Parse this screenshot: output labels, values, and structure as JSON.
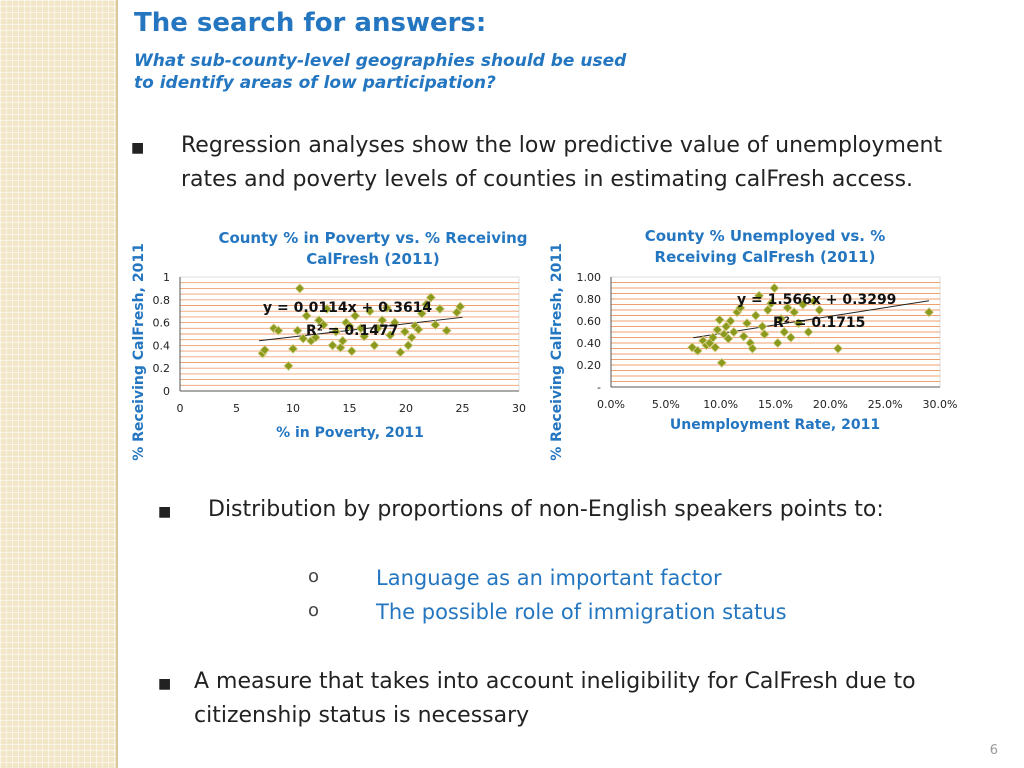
{
  "slide": {
    "title": "The search for answers:",
    "subtitle_line1": "What sub-county-level geographies should be used",
    "subtitle_line2": "to identify areas of low participation?",
    "bullet1": "Regression analyses show the low predictive value of unemployment rates and poverty levels of counties in estimating calFresh access.",
    "bullet2": "Distribution by proportions of non-English speakers points to:",
    "sub_bullets": [
      "Language as an important factor",
      "The possible role of immigration status"
    ],
    "bullet3": "A measure that takes into account ineligibility for CalFresh due to citizenship status is necessary",
    "bullet_mark": "■",
    "sub_mark": "o",
    "page_number": "6",
    "colors": {
      "accent": "#2476c0",
      "marker": "#8a9a1e",
      "grid": "#f0a070"
    }
  },
  "chart_data": [
    {
      "type": "scatter",
      "title_line1": "County % in Poverty vs. % Receiving",
      "title_line2": "CalFresh (2011)",
      "xlabel": "% in Poverty, 2011",
      "ylabel": "% Receiving CalFresh, 2011",
      "xlim": [
        0,
        30
      ],
      "ylim": [
        0,
        1
      ],
      "xticks": [
        "0",
        "5",
        "10",
        "15",
        "20",
        "25",
        "30"
      ],
      "yticks": [
        "0",
        "0.2",
        "0.4",
        "0.6",
        "0.8",
        "1"
      ],
      "equation": "y = 0.0114x + 0.3614",
      "r2": "R² = 0.1477",
      "trendline": {
        "slope": 0.0114,
        "intercept": 0.3614,
        "x_from": 7,
        "x_to": 25
      },
      "grid": true,
      "points": [
        [
          7.3,
          0.33
        ],
        [
          7.5,
          0.36
        ],
        [
          8.3,
          0.55
        ],
        [
          8.7,
          0.53
        ],
        [
          9.6,
          0.22
        ],
        [
          10.0,
          0.37
        ],
        [
          10.4,
          0.53
        ],
        [
          10.6,
          0.9
        ],
        [
          10.9,
          0.46
        ],
        [
          11.2,
          0.66
        ],
        [
          11.6,
          0.44
        ],
        [
          12.0,
          0.47
        ],
        [
          12.3,
          0.62
        ],
        [
          12.7,
          0.58
        ],
        [
          13.0,
          0.72
        ],
        [
          13.5,
          0.4
        ],
        [
          13.8,
          0.52
        ],
        [
          14.2,
          0.38
        ],
        [
          14.4,
          0.44
        ],
        [
          14.7,
          0.6
        ],
        [
          15.0,
          0.57
        ],
        [
          15.2,
          0.35
        ],
        [
          15.5,
          0.66
        ],
        [
          16.0,
          0.55
        ],
        [
          16.3,
          0.48
        ],
        [
          16.8,
          0.7
        ],
        [
          17.2,
          0.4
        ],
        [
          17.5,
          0.55
        ],
        [
          17.9,
          0.62
        ],
        [
          18.3,
          0.73
        ],
        [
          18.6,
          0.49
        ],
        [
          19.0,
          0.6
        ],
        [
          19.5,
          0.34
        ],
        [
          19.9,
          0.52
        ],
        [
          20.2,
          0.4
        ],
        [
          20.5,
          0.47
        ],
        [
          20.8,
          0.57
        ],
        [
          21.1,
          0.54
        ],
        [
          21.4,
          0.68
        ],
        [
          21.8,
          0.76
        ],
        [
          22.2,
          0.82
        ],
        [
          22.6,
          0.58
        ],
        [
          23.0,
          0.72
        ],
        [
          23.6,
          0.53
        ],
        [
          24.5,
          0.69
        ],
        [
          24.8,
          0.74
        ]
      ]
    },
    {
      "type": "scatter",
      "title_line1": "County % Unemployed vs. %",
      "title_line2": "Receiving CalFresh (2011)",
      "xlabel": "Unemployment Rate, 2011",
      "ylabel": "% Receiving CalFresh, 2011",
      "xlim": [
        0,
        0.3
      ],
      "ylim": [
        0,
        1
      ],
      "xticks": [
        "0.0%",
        "5.0%",
        "10.0%",
        "15.0%",
        "20.0%",
        "25.0%",
        "30.0%"
      ],
      "yticks": [
        "-",
        "0.20",
        "0.40",
        "0.60",
        "0.80",
        "1.00"
      ],
      "equation": "y = 1.566x + 0.3299",
      "r2": "R² = 0.1715",
      "trendline": {
        "slope": 1.566,
        "intercept": 0.3299,
        "x_from": 0.075,
        "x_to": 0.29
      },
      "grid": true,
      "points": [
        [
          0.074,
          0.36
        ],
        [
          0.079,
          0.33
        ],
        [
          0.084,
          0.42
        ],
        [
          0.087,
          0.38
        ],
        [
          0.09,
          0.4
        ],
        [
          0.093,
          0.45
        ],
        [
          0.095,
          0.36
        ],
        [
          0.097,
          0.52
        ],
        [
          0.099,
          0.61
        ],
        [
          0.101,
          0.22
        ],
        [
          0.103,
          0.48
        ],
        [
          0.105,
          0.55
        ],
        [
          0.107,
          0.44
        ],
        [
          0.109,
          0.6
        ],
        [
          0.112,
          0.5
        ],
        [
          0.115,
          0.68
        ],
        [
          0.118,
          0.72
        ],
        [
          0.121,
          0.46
        ],
        [
          0.124,
          0.58
        ],
        [
          0.127,
          0.4
        ],
        [
          0.129,
          0.35
        ],
        [
          0.132,
          0.65
        ],
        [
          0.135,
          0.83
        ],
        [
          0.138,
          0.55
        ],
        [
          0.14,
          0.48
        ],
        [
          0.143,
          0.7
        ],
        [
          0.146,
          0.76
        ],
        [
          0.149,
          0.9
        ],
        [
          0.152,
          0.4
        ],
        [
          0.155,
          0.62
        ],
        [
          0.158,
          0.5
        ],
        [
          0.161,
          0.72
        ],
        [
          0.164,
          0.45
        ],
        [
          0.167,
          0.68
        ],
        [
          0.171,
          0.58
        ],
        [
          0.175,
          0.75
        ],
        [
          0.18,
          0.5
        ],
        [
          0.185,
          0.78
        ],
        [
          0.19,
          0.7
        ],
        [
          0.207,
          0.35
        ],
        [
          0.29,
          0.68
        ]
      ]
    }
  ]
}
